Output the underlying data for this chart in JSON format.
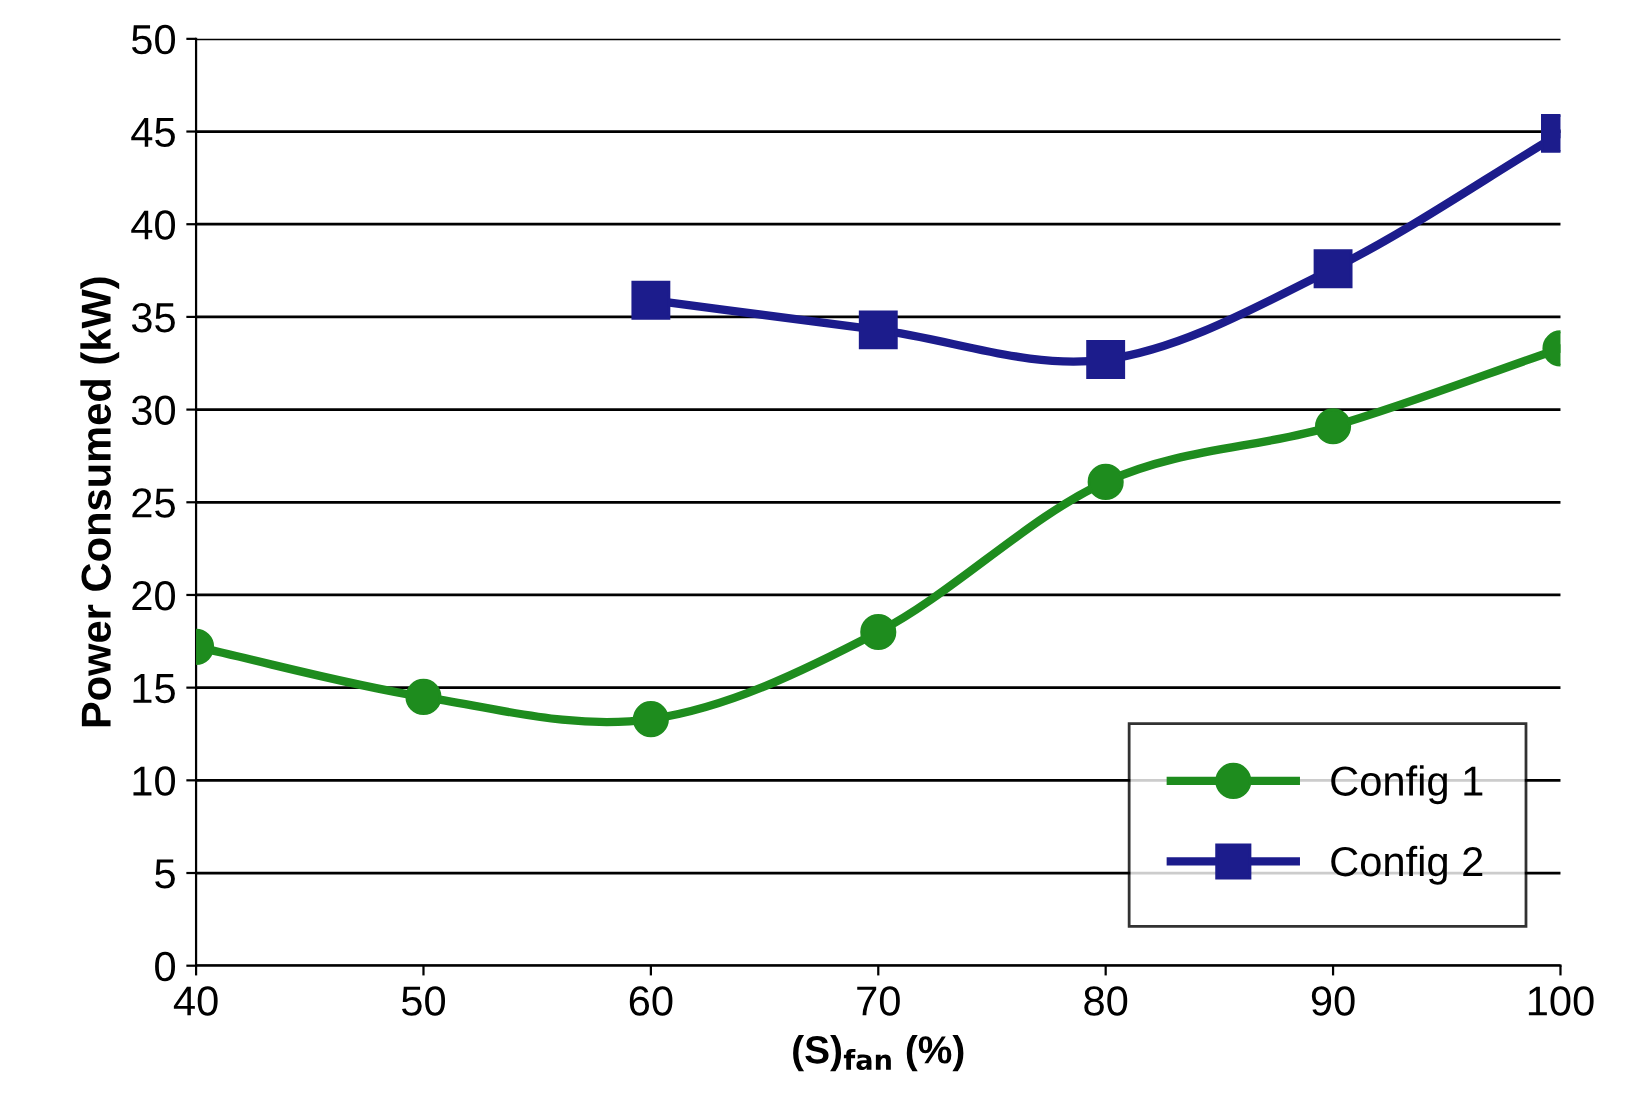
{
  "chart_data": {
    "type": "line",
    "xlabel": "(S)$_{fan}$ (%)",
    "ylabel": "Power Consumed (kW)",
    "x": [
      40,
      50,
      60,
      70,
      80,
      90,
      100
    ],
    "series": [
      {
        "name": "Config 1",
        "color": "#1e8c1e",
        "marker": "circle",
        "values": [
          17.2,
          14.5,
          13.3,
          18.0,
          26.1,
          29.1,
          33.3
        ]
      },
      {
        "name": "Config 2",
        "color": "#1c1c8c",
        "marker": "square",
        "values": [
          null,
          null,
          35.9,
          34.3,
          32.7,
          37.6,
          44.9
        ]
      }
    ],
    "xlim": [
      40,
      100
    ],
    "xticks": [
      40,
      50,
      60,
      70,
      80,
      90,
      100
    ],
    "ylim": [
      0,
      50
    ],
    "yticks": [
      0,
      5,
      10,
      15,
      20,
      25,
      30,
      35,
      40,
      45,
      50
    ],
    "grid": "y",
    "legend": "bottom right",
    "line_style": "solid"
  }
}
